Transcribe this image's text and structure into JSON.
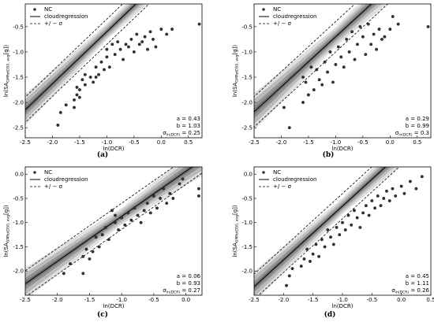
{
  "chart_data": [
    {
      "type": "scatter",
      "caption": "(a)",
      "xlabel": "ln(DCR)",
      "ylabel": "ln(SA",
      "ylabel_sub": "GMRotD50, avg",
      "ylabel_tail": "[g])",
      "xlim": [
        -2.5,
        0.75
      ],
      "ylim": [
        -2.7,
        -0.05
      ],
      "xticks": [
        "-2.5",
        "-2.0",
        "-1.5",
        "-1.0",
        "-0.5",
        "0.0",
        "0.5"
      ],
      "xtick_values": [
        -2.5,
        -2.0,
        -1.5,
        -1.0,
        -0.5,
        0.0,
        0.5
      ],
      "yticks": [
        "-2.5",
        "-2.0",
        "-1.5",
        "-1.0",
        "-0.5"
      ],
      "ytick_values": [
        -2.5,
        -2.0,
        -1.5,
        -1.0,
        -0.5
      ],
      "legend": [
        "NC",
        "cloudregression",
        "+/ − σ"
      ],
      "stats": {
        "a": "a = 0.43",
        "b": "b = 1.03",
        "sigma": "σ",
        "sigma_sub": "ln(DCR)",
        "sigma_val": " = 0.25"
      },
      "a": 0.43,
      "b": 1.03,
      "sigma": 0.25,
      "points": [
        [
          -1.9,
          -2.45
        ],
        [
          -1.85,
          -2.2
        ],
        [
          -1.75,
          -2.05
        ],
        [
          -1.6,
          -1.95
        ],
        [
          -1.6,
          -2.1
        ],
        [
          -1.55,
          -1.85
        ],
        [
          -1.55,
          -1.7
        ],
        [
          -1.5,
          -1.75
        ],
        [
          -1.5,
          -1.9
        ],
        [
          -1.45,
          -1.55
        ],
        [
          -1.4,
          -1.45
        ],
        [
          -1.4,
          -1.65
        ],
        [
          -1.3,
          -1.5
        ],
        [
          -1.25,
          -1.6
        ],
        [
          -1.2,
          -1.3
        ],
        [
          -1.2,
          -1.5
        ],
        [
          -1.15,
          -1.45
        ],
        [
          -1.1,
          -1.2
        ],
        [
          -1.05,
          -1.35
        ],
        [
          -1.0,
          -0.95
        ],
        [
          -1.0,
          -1.1
        ],
        [
          -0.95,
          -1.3
        ],
        [
          -0.9,
          -0.85
        ],
        [
          -0.85,
          -1.05
        ],
        [
          -0.8,
          -0.8
        ],
        [
          -0.75,
          -0.95
        ],
        [
          -0.7,
          -1.15
        ],
        [
          -0.65,
          -0.85
        ],
        [
          -0.6,
          -0.9
        ],
        [
          -0.55,
          -0.75
        ],
        [
          -0.5,
          -1.0
        ],
        [
          -0.45,
          -0.65
        ],
        [
          -0.4,
          -0.85
        ],
        [
          -0.35,
          -0.8
        ],
        [
          -0.3,
          -0.7
        ],
        [
          -0.25,
          -0.95
        ],
        [
          -0.2,
          -0.6
        ],
        [
          -0.15,
          -0.75
        ],
        [
          -0.1,
          -0.9
        ],
        [
          0.0,
          -0.55
        ],
        [
          0.1,
          -0.65
        ],
        [
          0.2,
          -0.55
        ],
        [
          0.7,
          -0.45
        ]
      ]
    },
    {
      "type": "scatter",
      "caption": "(b)",
      "xlabel": "ln(DCR)",
      "ylabel": "ln(SA",
      "ylabel_sub": "GMRotD50, avg",
      "ylabel_tail": "[g])",
      "xlim": [
        -2.5,
        0.75
      ],
      "ylim": [
        -2.7,
        -0.05
      ],
      "xticks": [
        "-2.5",
        "-2.0",
        "-1.5",
        "-1.0",
        "-0.5",
        "0.0",
        "0.5"
      ],
      "xtick_values": [
        -2.5,
        -2.0,
        -1.5,
        -1.0,
        -0.5,
        0.0,
        0.5
      ],
      "yticks": [
        "-2.5",
        "-2.0",
        "-1.5",
        "-1.0",
        "-0.5"
      ],
      "ytick_values": [
        -2.5,
        -2.0,
        -1.5,
        -1.0,
        -0.5
      ],
      "legend": [
        "NC",
        "cloudregression",
        "+/ − σ"
      ],
      "stats": {
        "a": "a = 0.29",
        "b": "b = 0.99",
        "sigma": "σ",
        "sigma_sub": "ln(DCR)",
        "sigma_val": " = 0.3"
      },
      "a": 0.29,
      "b": 0.99,
      "sigma": 0.3,
      "points": [
        [
          -1.95,
          -2.1
        ],
        [
          -1.85,
          -2.5
        ],
        [
          -1.6,
          -2.0
        ],
        [
          -1.6,
          -1.5
        ],
        [
          -1.55,
          -1.6
        ],
        [
          -1.5,
          -1.85
        ],
        [
          -1.45,
          -1.3
        ],
        [
          -1.4,
          -1.75
        ],
        [
          -1.35,
          -1.35
        ],
        [
          -1.3,
          -1.55
        ],
        [
          -1.25,
          -1.65
        ],
        [
          -1.2,
          -1.2
        ],
        [
          -1.15,
          -1.4
        ],
        [
          -1.1,
          -1.0
        ],
        [
          -1.05,
          -1.6
        ],
        [
          -1.0,
          -1.25
        ],
        [
          -0.95,
          -0.9
        ],
        [
          -0.9,
          -1.1
        ],
        [
          -0.85,
          -1.3
        ],
        [
          -0.8,
          -0.75
        ],
        [
          -0.75,
          -1.0
        ],
        [
          -0.7,
          -0.6
        ],
        [
          -0.65,
          -1.15
        ],
        [
          -0.6,
          -0.85
        ],
        [
          -0.55,
          -0.5
        ],
        [
          -0.5,
          -0.7
        ],
        [
          -0.45,
          -1.05
        ],
        [
          -0.4,
          -0.45
        ],
        [
          -0.35,
          -0.85
        ],
        [
          -0.3,
          -0.65
        ],
        [
          -0.25,
          -0.95
        ],
        [
          -0.2,
          -0.55
        ],
        [
          -0.15,
          -0.75
        ],
        [
          -0.1,
          -0.7
        ],
        [
          0.0,
          -0.55
        ],
        [
          0.05,
          -0.3
        ],
        [
          0.15,
          -0.45
        ],
        [
          0.7,
          -0.5
        ]
      ]
    },
    {
      "type": "scatter",
      "caption": "(c)",
      "xlabel": "ln(DCR)",
      "ylabel": "ln(SA",
      "ylabel_sub": "GMRotD50, avg",
      "ylabel_tail": "[g])",
      "xlim": [
        -2.5,
        0.25
      ],
      "ylim": [
        -2.5,
        0.15
      ],
      "xticks": [
        "-2.5",
        "-2.0",
        "-1.5",
        "-1.0",
        "-0.5",
        "0.0"
      ],
      "xtick_values": [
        -2.5,
        -2.0,
        -1.5,
        -1.0,
        -0.5,
        0.0
      ],
      "yticks": [
        "-2.0",
        "-1.5",
        "-1.0",
        "-0.5",
        "0.0"
      ],
      "ytick_values": [
        -2.0,
        -1.5,
        -1.0,
        -0.5,
        0.0
      ],
      "legend": [
        "NC",
        "cloudregression",
        "+/ − σ"
      ],
      "stats": {
        "a": "a = 0.06",
        "b": "b = 0.93",
        "sigma": "σ",
        "sigma_sub": "ln(DCR)",
        "sigma_val": " = 0.27"
      },
      "a": 0.06,
      "b": 0.93,
      "sigma": 0.27,
      "points": [
        [
          -1.9,
          -2.05
        ],
        [
          -1.8,
          -1.85
        ],
        [
          -1.6,
          -2.05
        ],
        [
          -1.6,
          -1.7
        ],
        [
          -1.55,
          -1.55
        ],
        [
          -1.5,
          -1.75
        ],
        [
          -1.45,
          -1.6
        ],
        [
          -1.4,
          -1.3
        ],
        [
          -1.35,
          -1.5
        ],
        [
          -1.3,
          -1.25
        ],
        [
          -1.25,
          -1.1
        ],
        [
          -1.2,
          -1.35
        ],
        [
          -1.15,
          -0.75
        ],
        [
          -1.1,
          -0.85
        ],
        [
          -1.1,
          -1.0
        ],
        [
          -1.05,
          -1.15
        ],
        [
          -1.0,
          -0.9
        ],
        [
          -0.95,
          -1.05
        ],
        [
          -0.9,
          -0.8
        ],
        [
          -0.85,
          -0.95
        ],
        [
          -0.8,
          -0.7
        ],
        [
          -0.75,
          -0.85
        ],
        [
          -0.7,
          -1.0
        ],
        [
          -0.65,
          -0.75
        ],
        [
          -0.6,
          -0.6
        ],
        [
          -0.55,
          -0.8
        ],
        [
          -0.5,
          -0.45
        ],
        [
          -0.45,
          -0.7
        ],
        [
          -0.4,
          -0.5
        ],
        [
          -0.35,
          -0.3
        ],
        [
          -0.3,
          -0.6
        ],
        [
          -0.25,
          -0.4
        ],
        [
          -0.2,
          -0.5
        ],
        [
          -0.1,
          -0.2
        ],
        [
          -0.05,
          -0.1
        ],
        [
          0.2,
          -0.3
        ],
        [
          0.2,
          -0.45
        ]
      ]
    },
    {
      "type": "scatter",
      "caption": "(d)",
      "xlabel": "ln(DCR)",
      "ylabel": "ln(SA",
      "ylabel_sub": "GMRotD50, avg",
      "ylabel_tail": "[g])",
      "xlim": [
        -2.5,
        0.5
      ],
      "ylim": [
        -2.5,
        0.15
      ],
      "xticks": [
        "-2.5",
        "-2.0",
        "-1.5",
        "-1.0",
        "-0.5",
        "0.0",
        "0.5"
      ],
      "xtick_values": [
        -2.5,
        -2.0,
        -1.5,
        -1.0,
        -0.5,
        0.0,
        0.5
      ],
      "yticks": [
        "-2.0",
        "-1.5",
        "-1.0",
        "-0.5",
        "0.0"
      ],
      "ytick_values": [
        -2.0,
        -1.5,
        -1.0,
        -0.5,
        0.0
      ],
      "legend": [
        "NC",
        "cloudregression",
        "+/ − σ"
      ],
      "stats": {
        "a": "a = 0.45",
        "b": "b = 1.11",
        "sigma": "σ",
        "sigma_sub": "ln(DCR)",
        "sigma_val": " = 0.26"
      },
      "a": 0.45,
      "b": 1.11,
      "sigma": 0.26,
      "points": [
        [
          -1.95,
          -2.3
        ],
        [
          -1.9,
          -2.1
        ],
        [
          -1.85,
          -1.95
        ],
        [
          -1.7,
          -1.9
        ],
        [
          -1.65,
          -1.75
        ],
        [
          -1.6,
          -1.55
        ],
        [
          -1.55,
          -1.8
        ],
        [
          -1.5,
          -1.65
        ],
        [
          -1.45,
          -1.45
        ],
        [
          -1.4,
          -1.7
        ],
        [
          -1.35,
          -1.35
        ],
        [
          -1.3,
          -1.5
        ],
        [
          -1.25,
          -1.15
        ],
        [
          -1.2,
          -1.3
        ],
        [
          -1.15,
          -1.45
        ],
        [
          -1.1,
          -1.1
        ],
        [
          -1.05,
          -1.25
        ],
        [
          -1.0,
          -1.0
        ],
        [
          -0.95,
          -1.15
        ],
        [
          -0.9,
          -0.85
        ],
        [
          -0.85,
          -1.05
        ],
        [
          -0.8,
          -0.75
        ],
        [
          -0.75,
          -0.9
        ],
        [
          -0.7,
          -1.1
        ],
        [
          -0.65,
          -0.8
        ],
        [
          -0.6,
          -0.65
        ],
        [
          -0.55,
          -0.85
        ],
        [
          -0.5,
          -0.55
        ],
        [
          -0.45,
          -0.7
        ],
        [
          -0.4,
          -0.45
        ],
        [
          -0.35,
          -0.65
        ],
        [
          -0.3,
          -0.5
        ],
        [
          -0.25,
          -0.35
        ],
        [
          -0.2,
          -0.55
        ],
        [
          -0.15,
          -0.3
        ],
        [
          -0.1,
          -0.45
        ],
        [
          0.0,
          -0.25
        ],
        [
          0.05,
          -0.4
        ],
        [
          0.15,
          -0.15
        ],
        [
          0.25,
          -0.3
        ],
        [
          0.35,
          -0.05
        ]
      ]
    }
  ]
}
